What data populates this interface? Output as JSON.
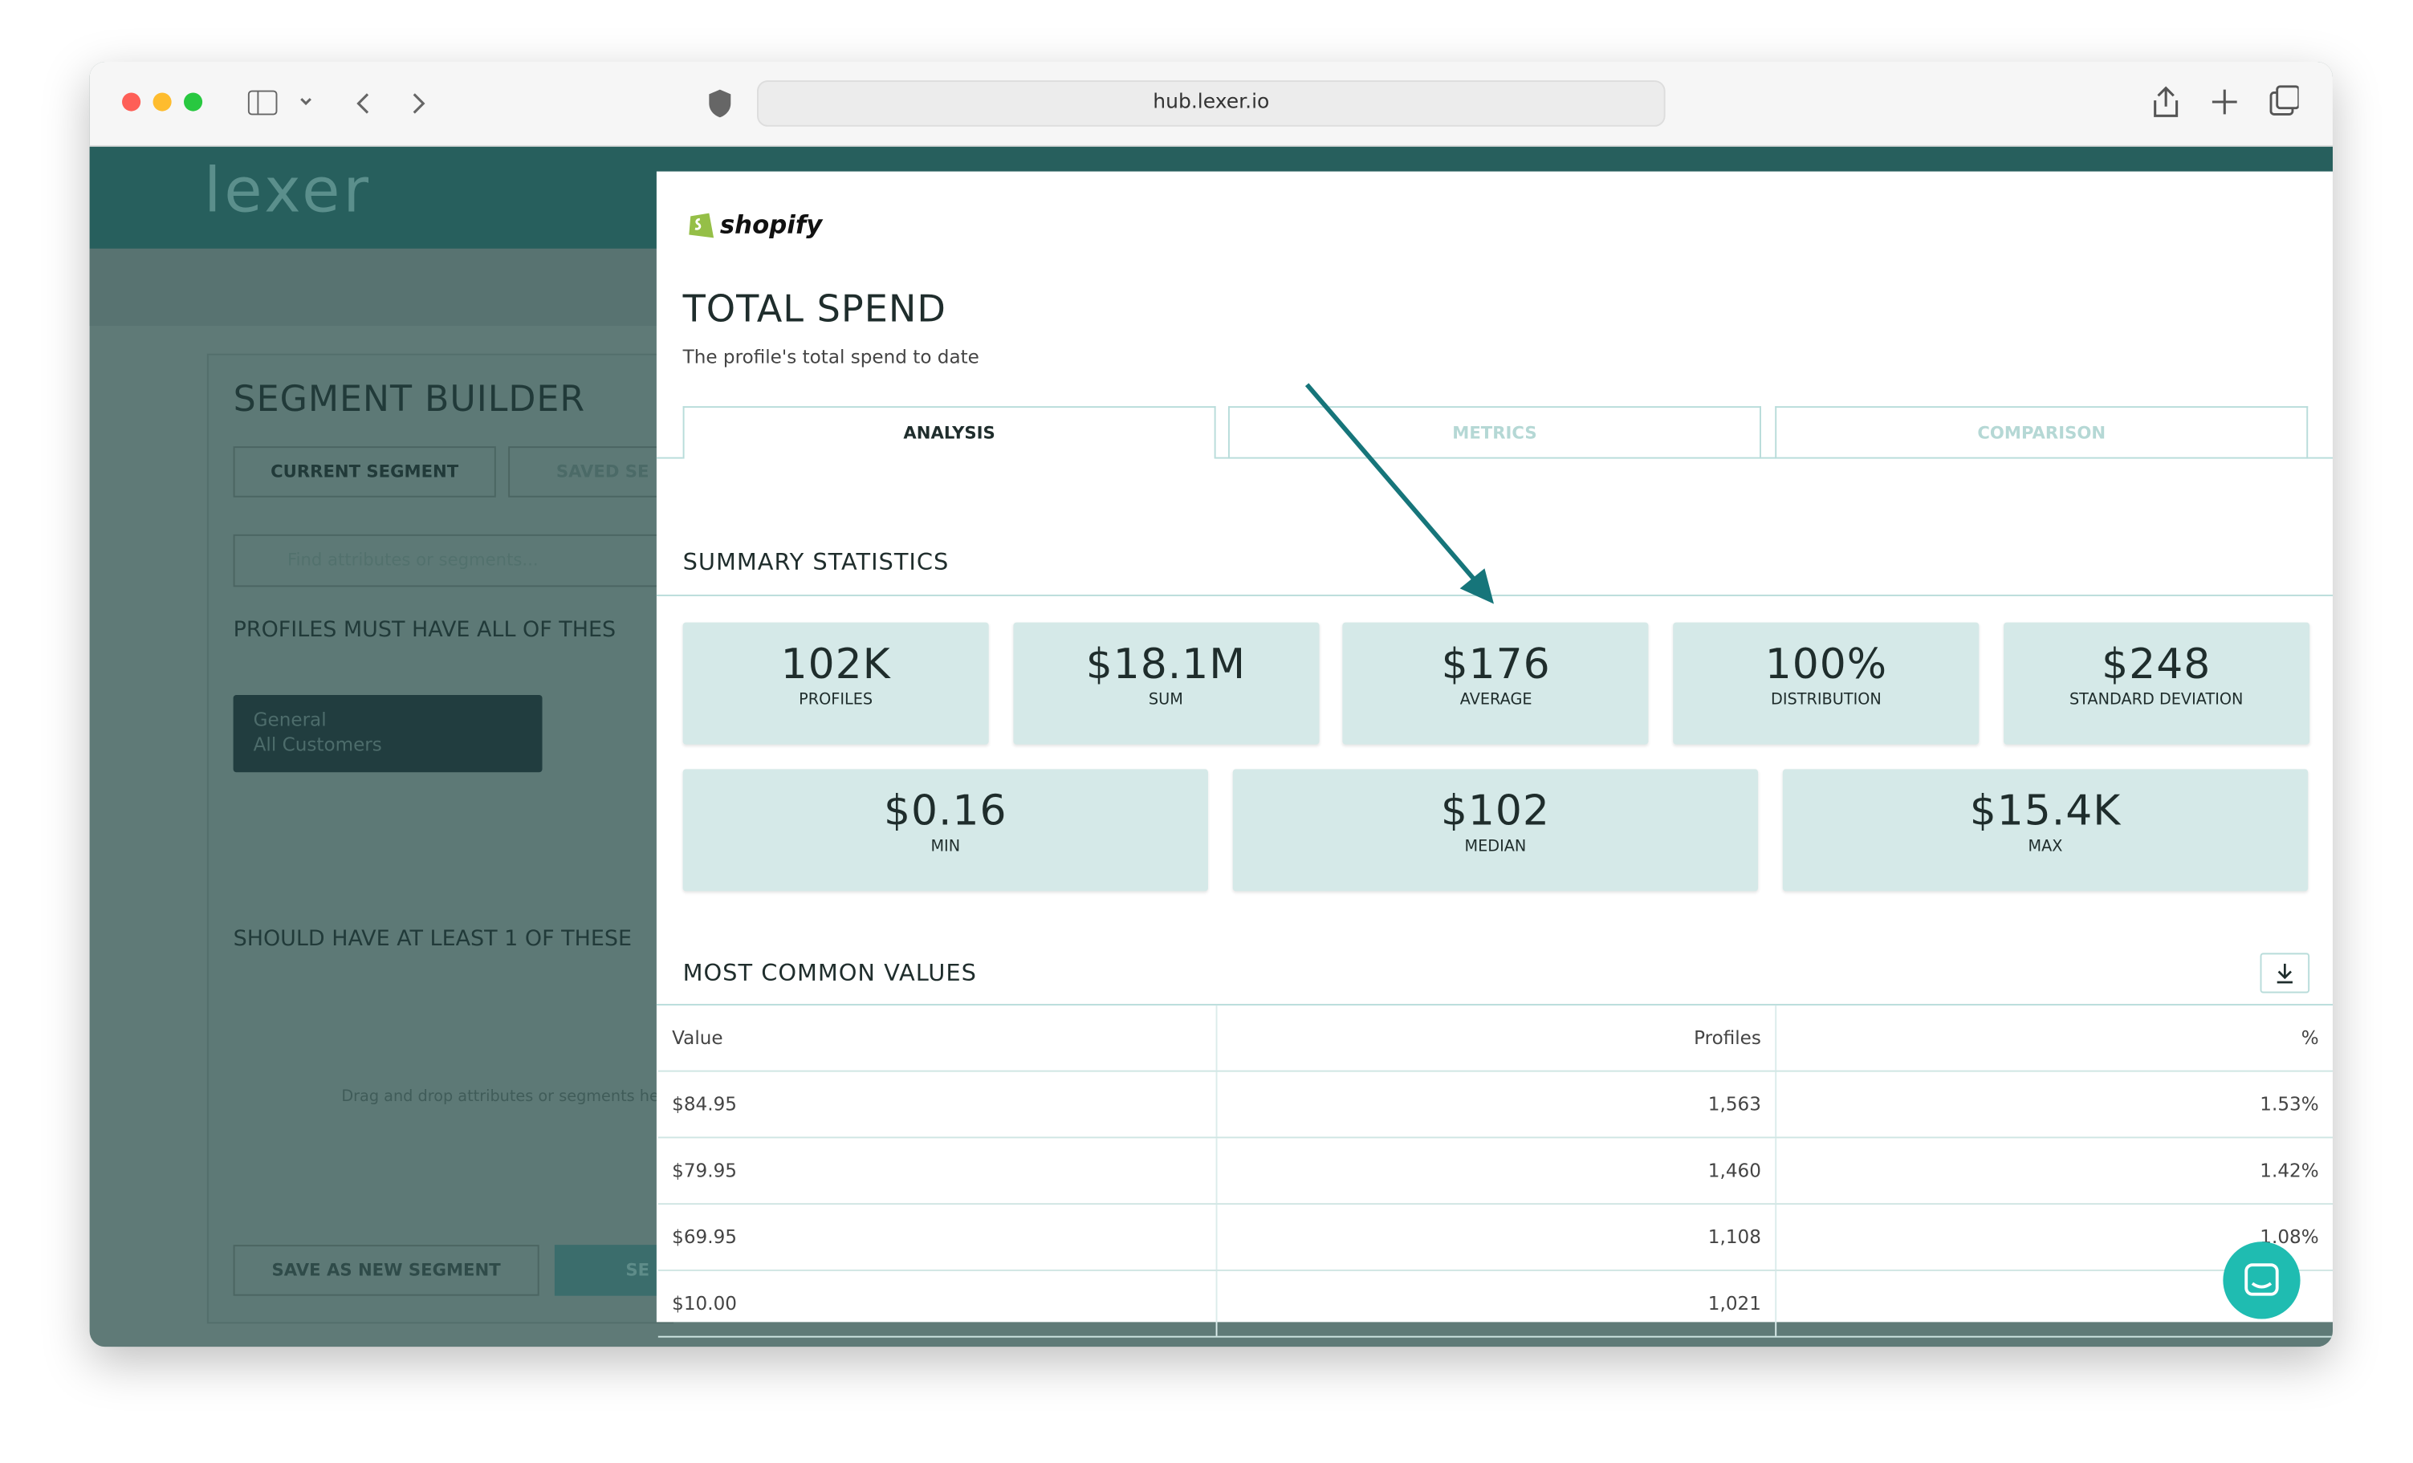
{
  "browser": {
    "url": "hub.lexer.io"
  },
  "app": {
    "logo": "lexer",
    "title": "SEGMENT BUILDER",
    "tabs": [
      "CURRENT SEGMENT",
      "SAVED SE"
    ],
    "search_placeholder": "Find attributes or segments...",
    "must_have": "PROFILES MUST HAVE ALL OF THES",
    "chip": {
      "group": "General",
      "label": "All Customers"
    },
    "should_have": "SHOULD HAVE AT LEAST 1 OF THESE",
    "drop_hint": "Drag and drop attributes or segments her",
    "buttons": [
      "SAVE AS NEW SEGMENT",
      "SE"
    ]
  },
  "modal": {
    "brand": "shopify",
    "title": "TOTAL SPEND",
    "subtitle": "The profile's total spend to date",
    "tabs": [
      "ANALYSIS",
      "METRICS",
      "COMPARISON"
    ],
    "summary_title": "SUMMARY STATISTICS",
    "stats": [
      {
        "value": "102K",
        "label": "PROFILES"
      },
      {
        "value": "$18.1M",
        "label": "SUM"
      },
      {
        "value": "$176",
        "label": "AVERAGE"
      },
      {
        "value": "100%",
        "label": "DISTRIBUTION"
      },
      {
        "value": "$248",
        "label": "STANDARD DEVIATION"
      },
      {
        "value": "$0.16",
        "label": "MIN"
      },
      {
        "value": "$102",
        "label": "MEDIAN"
      },
      {
        "value": "$15.4K",
        "label": "MAX"
      }
    ],
    "common_title": "MOST COMMON VALUES",
    "table": {
      "header": [
        "Value",
        "Profiles",
        "%"
      ],
      "rows": [
        [
          "$84.95",
          "1,563",
          "1.53%"
        ],
        [
          "$79.95",
          "1,460",
          "1.42%"
        ],
        [
          "$69.95",
          "1,108",
          "1.08%"
        ],
        [
          "$10.00",
          "1,021"
        ]
      ]
    }
  }
}
